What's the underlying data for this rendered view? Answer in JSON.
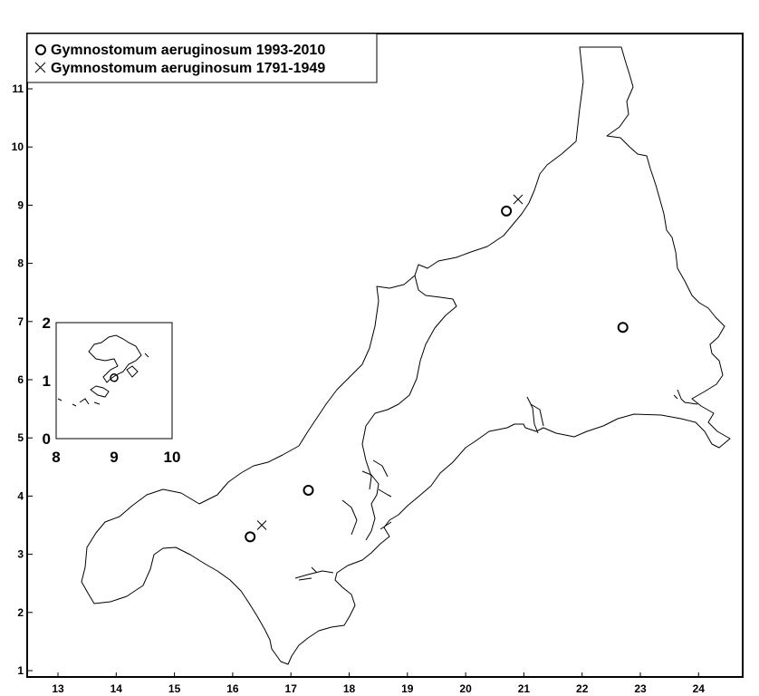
{
  "map": {
    "x_axis": {
      "ticks": [
        "13",
        "14",
        "15",
        "16",
        "17",
        "18",
        "19",
        "20",
        "21",
        "22",
        "23",
        "24"
      ]
    },
    "y_axis": {
      "ticks": [
        "1",
        "2",
        "3",
        "4",
        "5",
        "6",
        "7",
        "8",
        "9",
        "10",
        "11"
      ]
    },
    "legend": {
      "position": "top-left",
      "items": [
        {
          "marker": "circle",
          "label": "Gymnostomum aeruginosum 1993-2010"
        },
        {
          "marker": "cross",
          "label": "Gymnostomum aeruginosum 1791-1949"
        }
      ]
    },
    "records_1993_2010": [
      {
        "x": 16.3,
        "y": 3.3
      },
      {
        "x": 17.3,
        "y": 4.1
      },
      {
        "x": 20.7,
        "y": 8.9
      },
      {
        "x": 22.7,
        "y": 6.9
      }
    ],
    "records_1791_1949": [
      {
        "x": 16.5,
        "y": 3.5
      },
      {
        "x": 20.9,
        "y": 9.1
      }
    ],
    "inset": {
      "x_ticks": [
        "8",
        "9",
        "10"
      ],
      "y_ticks": [
        "0",
        "1",
        "2"
      ],
      "records_1993_2010": [
        {
          "x": 9.0,
          "y": 1.05
        }
      ]
    }
  },
  "colors": {
    "ink": "#000000",
    "background": "#ffffff"
  }
}
